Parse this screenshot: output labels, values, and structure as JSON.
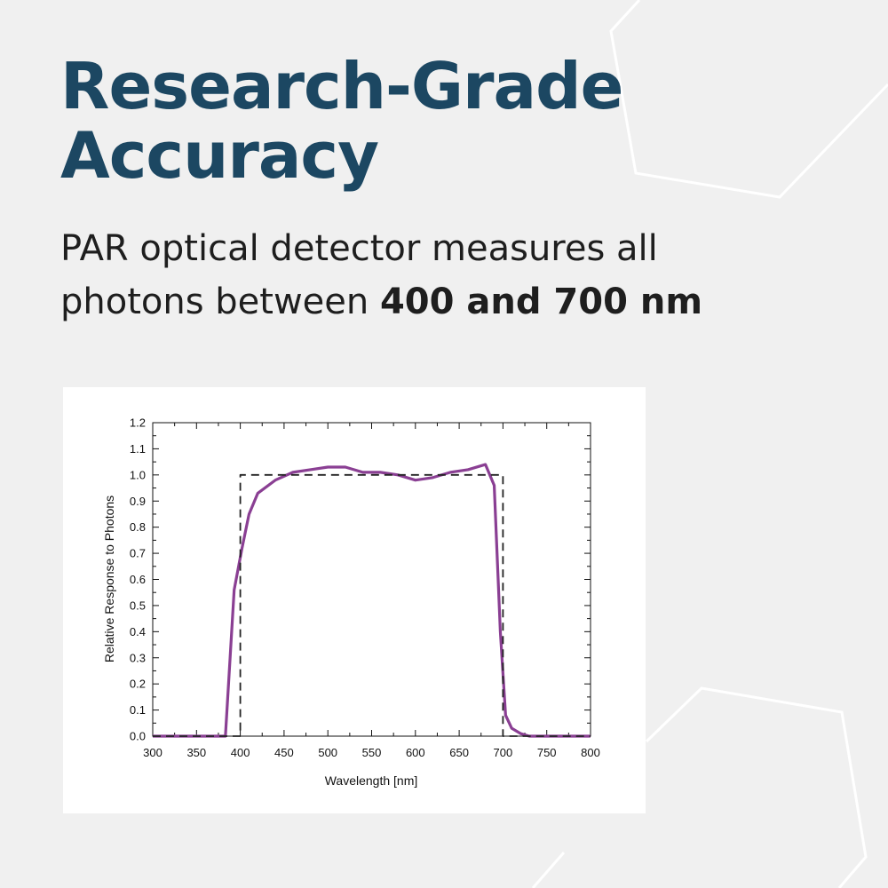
{
  "headline": {
    "line1": "Research-Grade",
    "line2": "Accuracy"
  },
  "subheadline": {
    "line1": "PAR optical detector measures all",
    "line2_prefix": "photons between ",
    "line2_bold": "400 and 700 nm"
  },
  "colors": {
    "headline": "#1c4762",
    "background": "#f0f0f0",
    "measured_line": "#8a3f93",
    "ideal_line": "#222222"
  },
  "chart_data": {
    "type": "line",
    "xlabel": "Wavelength [nm]",
    "ylabel": "Relative Response to Photons",
    "xlim": [
      300,
      800
    ],
    "ylim": [
      0.0,
      1.2
    ],
    "x_ticks": [
      300,
      350,
      400,
      450,
      500,
      550,
      600,
      650,
      700,
      750,
      800
    ],
    "y_ticks": [
      0.0,
      0.1,
      0.2,
      0.3,
      0.4,
      0.5,
      0.6,
      0.7,
      0.8,
      0.9,
      1.0,
      1.1,
      1.2
    ],
    "x_tick_labels": [
      "300",
      "350",
      "400",
      "450",
      "500",
      "550",
      "600",
      "650",
      "700",
      "750",
      "800"
    ],
    "y_tick_labels": [
      "0.0",
      "0.1",
      "0.2",
      "0.3",
      "0.4",
      "0.5",
      "0.6",
      "0.7",
      "0.8",
      "0.9",
      "1.0",
      "1.1",
      "1.2"
    ],
    "grid": false,
    "series": [
      {
        "style": "solid",
        "x": [
          300,
          383,
          393,
          402,
          410,
          420,
          440,
          460,
          480,
          500,
          520,
          540,
          560,
          580,
          600,
          620,
          640,
          660,
          680,
          690,
          697,
          703,
          710,
          720,
          730,
          800
        ],
        "y": [
          0.0,
          0.0,
          0.56,
          0.72,
          0.85,
          0.93,
          0.98,
          1.01,
          1.02,
          1.03,
          1.03,
          1.01,
          1.01,
          1.0,
          0.98,
          0.99,
          1.01,
          1.02,
          1.04,
          0.96,
          0.4,
          0.08,
          0.03,
          0.01,
          0.0,
          0.0
        ]
      },
      {
        "style": "dashed",
        "x": [
          300,
          400,
          400,
          700,
          700,
          800
        ],
        "y": [
          0.0,
          0.0,
          1.0,
          1.0,
          0.0,
          0.0
        ]
      }
    ]
  }
}
